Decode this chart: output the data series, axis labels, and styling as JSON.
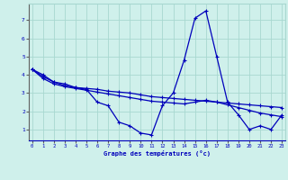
{
  "title": "Graphe des températures (°c)",
  "bg_color": "#cff0eb",
  "grid_color": "#a8d8d0",
  "line_color": "#0000bb",
  "x_ticks": [
    0,
    1,
    2,
    3,
    4,
    5,
    6,
    7,
    8,
    9,
    10,
    11,
    12,
    13,
    14,
    15,
    16,
    17,
    18,
    19,
    20,
    21,
    22,
    23
  ],
  "y_ticks": [
    1,
    2,
    3,
    4,
    5,
    6,
    7
  ],
  "xlim": [
    -0.3,
    23.3
  ],
  "ylim": [
    0.4,
    7.9
  ],
  "series1": [
    4.3,
    4.0,
    3.6,
    3.5,
    3.3,
    3.2,
    2.5,
    2.3,
    1.4,
    1.2,
    0.8,
    0.7,
    2.3,
    3.0,
    4.8,
    7.1,
    7.5,
    5.0,
    2.5,
    1.8,
    1.0,
    1.2,
    1.0,
    1.8
  ],
  "series2": [
    4.3,
    3.9,
    3.6,
    3.4,
    3.3,
    3.25,
    3.2,
    3.1,
    3.05,
    3.0,
    2.9,
    2.8,
    2.75,
    2.7,
    2.65,
    2.6,
    2.55,
    2.5,
    2.45,
    2.4,
    2.35,
    2.3,
    2.25,
    2.2
  ],
  "series3": [
    4.3,
    3.8,
    3.5,
    3.35,
    3.25,
    3.15,
    3.05,
    2.95,
    2.85,
    2.75,
    2.65,
    2.55,
    2.5,
    2.45,
    2.4,
    2.5,
    2.6,
    2.5,
    2.35,
    2.2,
    2.05,
    1.9,
    1.8,
    1.7
  ]
}
